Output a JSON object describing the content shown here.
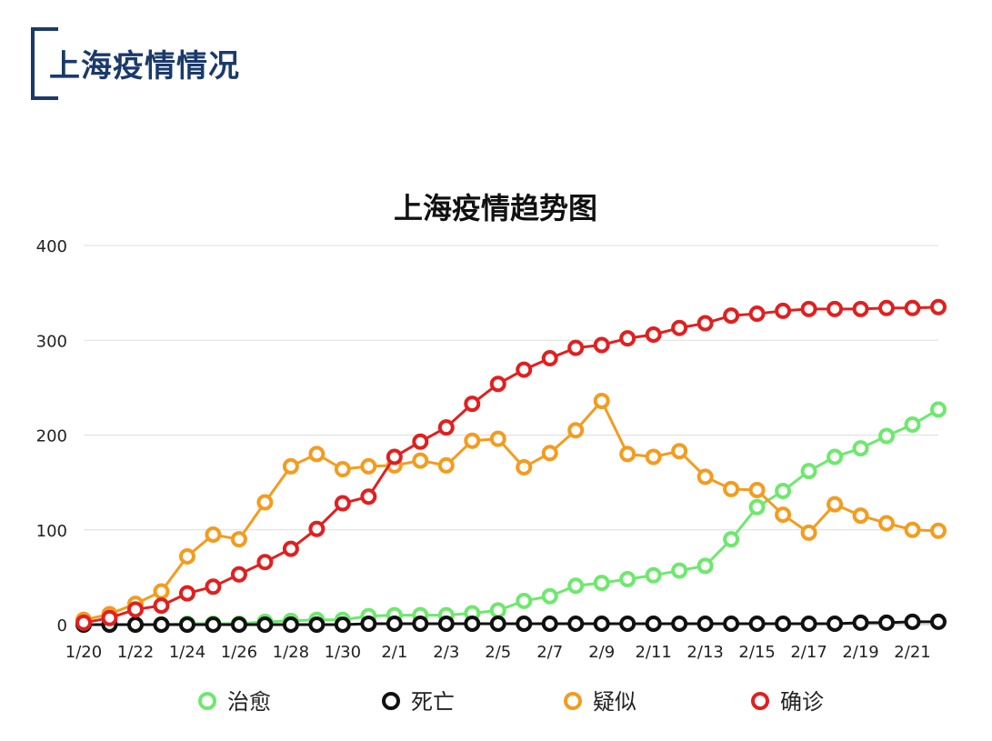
{
  "header": {
    "title": "上海疫情情况"
  },
  "chart_data": {
    "type": "line",
    "title": "上海疫情趋势图",
    "xlabel": "",
    "ylabel": "",
    "ylim": [
      0,
      400
    ],
    "yticks": [
      0,
      100,
      200,
      300,
      400
    ],
    "grid": true,
    "legend_position": "bottom",
    "categories": [
      "1/20",
      "1/21",
      "1/22",
      "1/23",
      "1/24",
      "1/25",
      "1/26",
      "1/27",
      "1/28",
      "1/29",
      "1/30",
      "1/31",
      "2/1",
      "2/2",
      "2/3",
      "2/4",
      "2/5",
      "2/6",
      "2/7",
      "2/8",
      "2/9",
      "2/10",
      "2/11",
      "2/12",
      "2/13",
      "2/14",
      "2/15",
      "2/16",
      "2/17",
      "2/18",
      "2/19",
      "2/20",
      "2/21",
      "2/22"
    ],
    "x_tick_labels": [
      "1/20",
      "1/22",
      "1/24",
      "1/26",
      "1/28",
      "1/30",
      "2/1",
      "2/3",
      "2/5",
      "2/7",
      "2/9",
      "2/11",
      "2/13",
      "2/15",
      "2/17",
      "2/19",
      "2/21"
    ],
    "series": [
      {
        "name": "治愈",
        "color": "#6ee86e",
        "values": [
          0,
          0,
          0,
          0,
          1,
          1,
          1,
          3,
          4,
          5,
          5,
          9,
          10,
          10,
          10,
          12,
          15,
          25,
          30,
          41,
          44,
          48,
          52,
          57,
          62,
          90,
          124,
          141,
          162,
          177,
          186,
          199,
          211,
          227
        ]
      },
      {
        "name": "死亡",
        "color": "#111111",
        "values": [
          0,
          0,
          0,
          0,
          0,
          0,
          0,
          0,
          0,
          0,
          0,
          1,
          1,
          1,
          1,
          1,
          1,
          1,
          1,
          1,
          1,
          1,
          1,
          1,
          1,
          1,
          1,
          1,
          1,
          1,
          2,
          2,
          3,
          3
        ]
      },
      {
        "name": "疑似",
        "color": "#f39c1f",
        "values": [
          5,
          11,
          22,
          35,
          72,
          95,
          90,
          129,
          167,
          180,
          164,
          167,
          168,
          173,
          168,
          194,
          196,
          166,
          181,
          205,
          236,
          180,
          177,
          183,
          156,
          143,
          142,
          116,
          97,
          127,
          115,
          107,
          100,
          99
        ]
      },
      {
        "name": "确诊",
        "color": "#e02020",
        "values": [
          2,
          7,
          16,
          20,
          33,
          40,
          53,
          66,
          80,
          101,
          128,
          135,
          177,
          193,
          208,
          233,
          254,
          269,
          281,
          292,
          295,
          302,
          306,
          313,
          318,
          326,
          328,
          331,
          333,
          333,
          333,
          334,
          334,
          335
        ]
      }
    ]
  }
}
